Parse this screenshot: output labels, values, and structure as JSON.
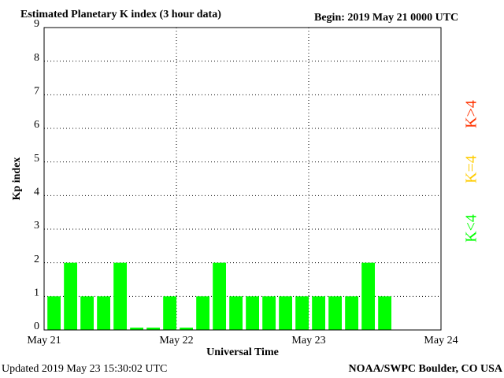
{
  "chart_data": {
    "type": "bar",
    "title": "Estimated Planetary K index (3 hour data)",
    "subtitle": "Begin:  2019 May 21 0000 UTC",
    "ylabel": "Kp index",
    "xlabel": "Universal Time",
    "footer_left": "Updated 2019 May 23 15:30:02 UTC",
    "footer_right": "NOAA/SWPC Boulder, CO USA",
    "x": [
      0,
      3,
      6,
      9,
      12,
      15,
      18,
      21,
      24,
      27,
      30,
      33,
      36,
      39,
      42,
      45,
      48,
      51,
      54,
      57,
      60
    ],
    "bar_width": 3,
    "values": [
      1,
      2,
      1,
      1,
      2,
      0.07,
      0.07,
      1,
      0.07,
      1,
      2,
      1,
      1,
      1,
      1,
      1,
      1,
      1,
      1,
      2,
      1
    ],
    "color": "#00ff00",
    "xlim": [
      0,
      72
    ],
    "xticks": [
      {
        "value": 0,
        "label": "May 21"
      },
      {
        "value": 24,
        "label": "May 22"
      },
      {
        "value": 48,
        "label": "May 23"
      },
      {
        "value": 72,
        "label": "May 24"
      }
    ],
    "ylim": [
      0,
      9
    ],
    "yticks": [
      0,
      1,
      2,
      3,
      4,
      5,
      6,
      7,
      8,
      9
    ],
    "grid": true,
    "legend": [
      {
        "label": "K<4",
        "color": "#00ff00"
      },
      {
        "label": "K=4",
        "color": "#ffcc00"
      },
      {
        "label": "K>4",
        "color": "#ff3300"
      }
    ]
  }
}
